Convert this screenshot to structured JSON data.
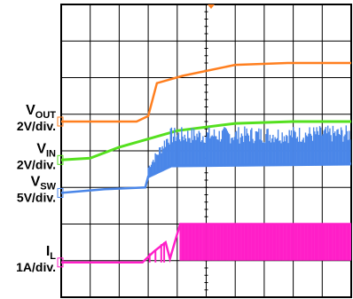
{
  "chart_data": {
    "type": "line",
    "title": "",
    "xlabel": "",
    "ylabel": "",
    "grid": true,
    "grid_divisions": {
      "x": 10,
      "y": 8
    },
    "series": [
      {
        "name_main": "V",
        "name_sub": "OUT",
        "scale": "2V/div.",
        "color": "#ff7f1f",
        "values": [
          [
            0,
            4.8
          ],
          [
            2.6,
            4.8
          ],
          [
            3.0,
            4.95
          ],
          [
            3.3,
            5.85
          ],
          [
            4.2,
            6.05
          ],
          [
            6.0,
            6.35
          ],
          [
            7.8,
            6.4
          ],
          [
            10,
            6.4
          ]
        ]
      },
      {
        "name_main": "V",
        "name_sub": "IN",
        "scale": "2V/div.",
        "color": "#55e01f",
        "values": [
          [
            0,
            3.75
          ],
          [
            1.0,
            3.8
          ],
          [
            2.0,
            4.1
          ],
          [
            4.0,
            4.55
          ],
          [
            6.0,
            4.75
          ],
          [
            8.0,
            4.8
          ],
          [
            10,
            4.8
          ]
        ]
      },
      {
        "name_main": "V",
        "name_sub": "SW",
        "scale": "5V/div.",
        "color": "#4a86e8",
        "values": [
          [
            0,
            2.85
          ],
          [
            1.5,
            2.95
          ],
          [
            2.9,
            3.0
          ],
          [
            3.0,
            3.3
          ],
          [
            3.8,
            3.6
          ],
          [
            10,
            3.65
          ]
        ]
      },
      {
        "name_main": "I",
        "name_sub": "L",
        "scale": "1A/div.",
        "color": "#ff1fc8",
        "values": [
          [
            0,
            0.95
          ],
          [
            2.8,
            0.95
          ],
          [
            3.2,
            1.25
          ],
          [
            3.6,
            1.5
          ],
          [
            3.75,
            1.05
          ],
          [
            4.1,
            2.0
          ],
          [
            10,
            2.0
          ]
        ]
      }
    ]
  }
}
